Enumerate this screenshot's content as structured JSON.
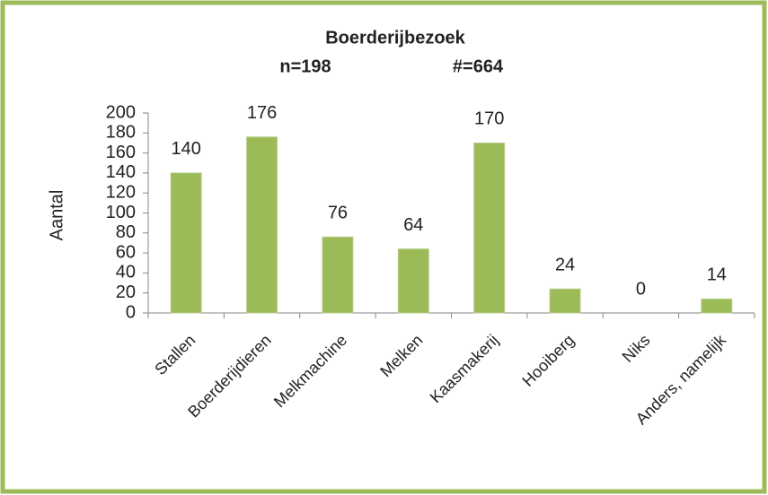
{
  "chart_data": {
    "type": "bar",
    "title": "Boerderijbezoek",
    "subtitle": [
      "n=198",
      "#=664"
    ],
    "y_label": "Aantal",
    "categories": [
      "Stallen",
      "Boerderijdieren",
      "Melkmachine",
      "Melken",
      "Kaasmakerij",
      "Hooiberg",
      "Niks",
      "Anders, namelijk"
    ],
    "values": [
      140,
      176,
      76,
      64,
      170,
      24,
      0,
      14
    ],
    "color": "#9bbb59",
    "ylim": [
      0,
      200
    ],
    "yticks": [
      0,
      20,
      40,
      60,
      80,
      100,
      120,
      140,
      160,
      180,
      200
    ],
    "grid": false
  }
}
